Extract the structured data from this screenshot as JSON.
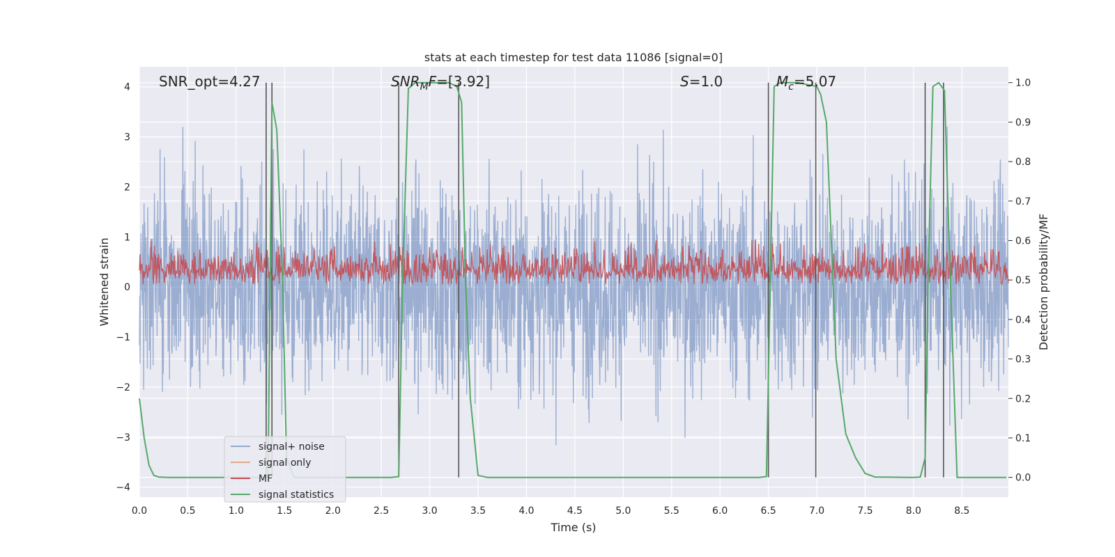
{
  "chart_data": {
    "type": "line",
    "title": "stats at each timestep for test data 11086 [signal=0]",
    "xlabel": "Time (s)",
    "ylabel": "Whitened strain",
    "y2label": "Detection probability/MF",
    "xlim": [
      0.0,
      8.98
    ],
    "ylim": [
      -4.2,
      4.4
    ],
    "y2lim": [
      -0.05,
      1.04
    ],
    "x_ticks": [
      "0.0",
      "0.5",
      "1.0",
      "1.5",
      "2.0",
      "2.5",
      "3.0",
      "3.5",
      "4.0",
      "4.5",
      "5.0",
      "5.5",
      "6.0",
      "6.5",
      "7.0",
      "7.5",
      "8.0",
      "8.5"
    ],
    "y_ticks": [
      "4",
      "3",
      "2",
      "1",
      "0",
      "−1",
      "−2",
      "−3",
      "−4"
    ],
    "y2_ticks": [
      "1.0",
      "0.9",
      "0.8",
      "0.7",
      "0.6",
      "0.5",
      "0.4",
      "0.3",
      "0.2",
      "0.1",
      "0.0"
    ],
    "grid": true,
    "legend_position": "lower-left",
    "annotations": [
      {
        "text": "SNR_opt=4.27",
        "x": 0.2
      },
      {
        "text": "SNR_MF=[3.92]",
        "x": 2.6
      },
      {
        "text": "S=1.0",
        "x": 5.6
      },
      {
        "text": "M_c=5.07",
        "x": 6.6
      }
    ],
    "series": [
      {
        "name": "signal+ noise",
        "color": "#4c72b0",
        "description": "dense noisy strain trace",
        "noise_std": 1.0,
        "range": [
          -3.7,
          4.0
        ]
      },
      {
        "name": "signal only",
        "color": "#dd8452",
        "values": []
      },
      {
        "name": "MF",
        "color": "#c44e52",
        "axis": "right",
        "range": [
          0.49,
          0.62
        ]
      },
      {
        "name": "signal statistics",
        "color": "#55a868",
        "axis": "right",
        "x": [
          0.0,
          0.05,
          0.1,
          0.15,
          0.2,
          0.3,
          0.5,
          0.8,
          1.0,
          1.2,
          1.3,
          1.33,
          1.37,
          1.42,
          1.48,
          1.52,
          1.6,
          1.7,
          2.0,
          2.4,
          2.6,
          2.68,
          2.72,
          2.78,
          2.85,
          3.0,
          3.2,
          3.28,
          3.33,
          3.37,
          3.42,
          3.5,
          3.6,
          4.0,
          5.0,
          6.0,
          6.4,
          6.48,
          6.52,
          6.56,
          6.62,
          6.8,
          7.0,
          7.04,
          7.1,
          7.15,
          7.2,
          7.3,
          7.4,
          7.5,
          7.6,
          8.0,
          8.07,
          8.12,
          8.15,
          8.2,
          8.26,
          8.32,
          8.38,
          8.45,
          8.6,
          8.96
        ],
        "y": [
          0.2,
          0.1,
          0.03,
          0.005,
          0.001,
          0.0,
          0.0,
          0.0,
          0.0,
          0.0,
          0.0,
          0.002,
          0.95,
          0.88,
          0.5,
          0.05,
          0.0,
          0.0,
          0.0,
          0.0,
          0.0,
          0.002,
          0.5,
          0.985,
          1.0,
          1.0,
          1.0,
          0.99,
          0.95,
          0.5,
          0.2,
          0.005,
          0.0,
          0.0,
          0.0,
          0.0,
          0.0,
          0.002,
          0.5,
          0.99,
          1.0,
          1.0,
          0.99,
          0.97,
          0.9,
          0.6,
          0.3,
          0.11,
          0.05,
          0.01,
          0.001,
          0.0,
          0.001,
          0.05,
          0.5,
          0.99,
          1.0,
          0.98,
          0.5,
          0.0,
          0.0,
          0.0
        ]
      }
    ],
    "vertical_markers": [
      1.31,
      1.37,
      2.68,
      3.3,
      6.5,
      6.99,
      8.12,
      8.31
    ]
  },
  "legend": {
    "items": [
      {
        "label": "signal+ noise",
        "color": "#4c72b0"
      },
      {
        "label": "signal only",
        "color": "#dd8452"
      },
      {
        "label": "MF",
        "color": "#c44e52"
      },
      {
        "label": "signal statistics",
        "color": "#55a868"
      }
    ]
  },
  "style": {
    "plot_background": "#eaeaf2",
    "grid_color": "#ffffff",
    "marker_color": "#555555"
  }
}
